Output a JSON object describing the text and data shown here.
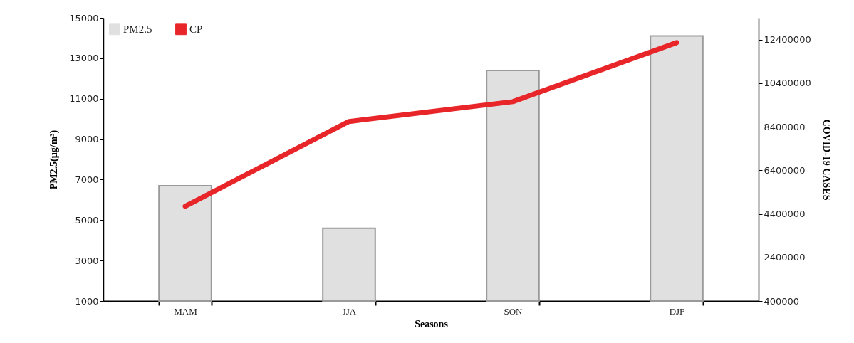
{
  "chart_data": {
    "type": "bar",
    "xlabel": "Seasons",
    "ylabel": "PM2.5(µg/m³)",
    "y2label": "COVID-19 CASES",
    "categories": [
      "MAM",
      "JJA",
      "SON",
      "DJF"
    ],
    "series": [
      {
        "name": "PM2.5",
        "color": "#e0e0e0",
        "values": [
          6700,
          4600,
          12400,
          14100
        ]
      },
      {
        "name": "CP",
        "type": "line",
        "axis": "y2",
        "color": "#e8262a",
        "values": [
          4750000,
          8640000,
          9550000,
          12260000
        ]
      }
    ],
    "ylim": [
      1000,
      15000
    ],
    "yticks": [
      1000,
      3000,
      5000,
      7000,
      9000,
      11000,
      13000,
      15000
    ],
    "y2lim": [
      400000,
      13400000
    ],
    "y2ticks": [
      400000,
      2400000,
      4400000,
      6400000,
      8400000,
      10400000,
      12400000
    ],
    "legend": "top left",
    "marker": "none",
    "line_style": "solid"
  }
}
